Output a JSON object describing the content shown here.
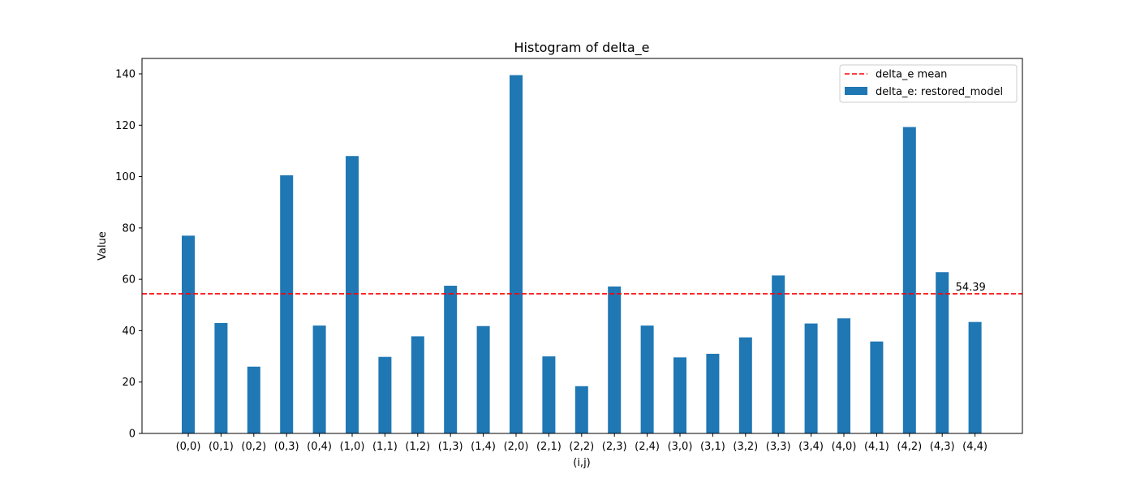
{
  "chart_data": {
    "type": "bar",
    "title": "Histogram of delta_e",
    "xlabel": "(i,j)",
    "ylabel": "Value",
    "ylim": [
      0,
      146
    ],
    "yticks": [
      0,
      20,
      40,
      60,
      80,
      100,
      120,
      140
    ],
    "categories": [
      "(0,0)",
      "(0,1)",
      "(0,2)",
      "(0,3)",
      "(0,4)",
      "(1,0)",
      "(1,1)",
      "(1,2)",
      "(1,3)",
      "(1,4)",
      "(2,0)",
      "(2,1)",
      "(2,2)",
      "(2,3)",
      "(2,4)",
      "(3,0)",
      "(3,1)",
      "(3,2)",
      "(3,3)",
      "(3,4)",
      "(4,0)",
      "(4,1)",
      "(4,2)",
      "(4,3)",
      "(4,4)"
    ],
    "series": [
      {
        "name": "delta_e: restored_model",
        "color": "#1f77b4",
        "values": [
          77.0,
          43.0,
          26.0,
          100.5,
          42.0,
          108.0,
          29.8,
          37.8,
          57.5,
          41.8,
          139.5,
          30.0,
          18.4,
          57.2,
          42.0,
          29.6,
          31.0,
          37.4,
          61.5,
          42.8,
          44.8,
          35.8,
          119.3,
          62.8,
          43.4
        ]
      }
    ],
    "mean_line": {
      "name": "delta_e mean",
      "value": 54.39,
      "label": "54.39",
      "color": "#ff0000",
      "style": "dashed"
    },
    "legend_position": "top-right",
    "grid": false
  }
}
